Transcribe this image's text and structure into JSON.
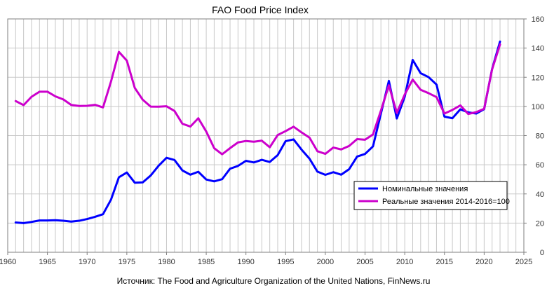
{
  "chart_data": {
    "type": "line",
    "title": "FAO Food Price Index",
    "source": "Источник: The Food and Agriculture Organization of the United Nations, FinNews.ru",
    "x_ticks": [
      "1960",
      "1965",
      "1970",
      "1975",
      "1980",
      "1985",
      "1990",
      "1995",
      "2000",
      "2005",
      "2010",
      "2015",
      "2020",
      "2025"
    ],
    "y_ticks": [
      "0",
      "20",
      "40",
      "60",
      "80",
      "100",
      "120",
      "140",
      "160"
    ],
    "xlim": [
      1960,
      2025
    ],
    "ylim": [
      0,
      160
    ],
    "y_axis_side": "right",
    "grid": "vertical gridlines every year, horizontal gridlines every 20",
    "legend_position": "lower-right inside plot",
    "x": [
      1961,
      1962,
      1963,
      1964,
      1965,
      1966,
      1967,
      1968,
      1969,
      1970,
      1971,
      1972,
      1973,
      1974,
      1975,
      1976,
      1977,
      1978,
      1979,
      1980,
      1981,
      1982,
      1983,
      1984,
      1985,
      1986,
      1987,
      1988,
      1989,
      1990,
      1991,
      1992,
      1993,
      1994,
      1995,
      1996,
      1997,
      1998,
      1999,
      2000,
      2001,
      2002,
      2003,
      2004,
      2005,
      2006,
      2007,
      2008,
      2009,
      2010,
      2011,
      2012,
      2013,
      2014,
      2015,
      2016,
      2017,
      2018,
      2019,
      2020,
      2021,
      2022
    ],
    "series": [
      {
        "name": "Номинальные значения",
        "color": "#0000ff",
        "values": [
          20.4,
          20.0,
          20.8,
          21.8,
          21.8,
          22.0,
          21.6,
          21.0,
          21.6,
          22.8,
          24.3,
          26.1,
          36.0,
          51.4,
          54.7,
          47.7,
          47.9,
          52.6,
          59.3,
          64.8,
          63.3,
          56.1,
          53.2,
          55.2,
          49.9,
          48.6,
          50.1,
          57.3,
          59.2,
          62.7,
          61.6,
          63.4,
          61.9,
          66.6,
          76.2,
          77.4,
          70.4,
          64.2,
          55.3,
          53.1,
          54.9,
          53.2,
          57.0,
          65.6,
          67.4,
          72.6,
          95.1,
          117.5,
          91.7,
          106.7,
          131.9,
          122.8,
          120.1,
          115.0,
          93.0,
          91.9,
          98.0,
          95.9,
          95.1,
          98.1,
          125.7,
          144.5
        ]
      },
      {
        "name": "Реальные значения 2014-2016=100",
        "color": "#cc00cc",
        "values": [
          103.7,
          100.9,
          106.6,
          110.1,
          110.1,
          106.9,
          104.8,
          101.0,
          100.3,
          100.4,
          101.1,
          99.3,
          116.9,
          137.4,
          131.4,
          112.7,
          104.6,
          99.9,
          99.8,
          100.1,
          96.9,
          88.1,
          86.2,
          91.9,
          82.8,
          71.4,
          67.2,
          71.4,
          75.3,
          76.3,
          75.8,
          76.5,
          72.0,
          80.4,
          83.1,
          86.1,
          82.2,
          78.6,
          69.3,
          67.5,
          71.8,
          70.5,
          72.9,
          77.6,
          77.2,
          80.8,
          97.1,
          114.5,
          95.6,
          108.2,
          118.4,
          111.4,
          109.1,
          106.4,
          95.1,
          97.6,
          100.7,
          94.8,
          96.1,
          98.4,
          125.4,
          142.5
        ]
      }
    ]
  }
}
